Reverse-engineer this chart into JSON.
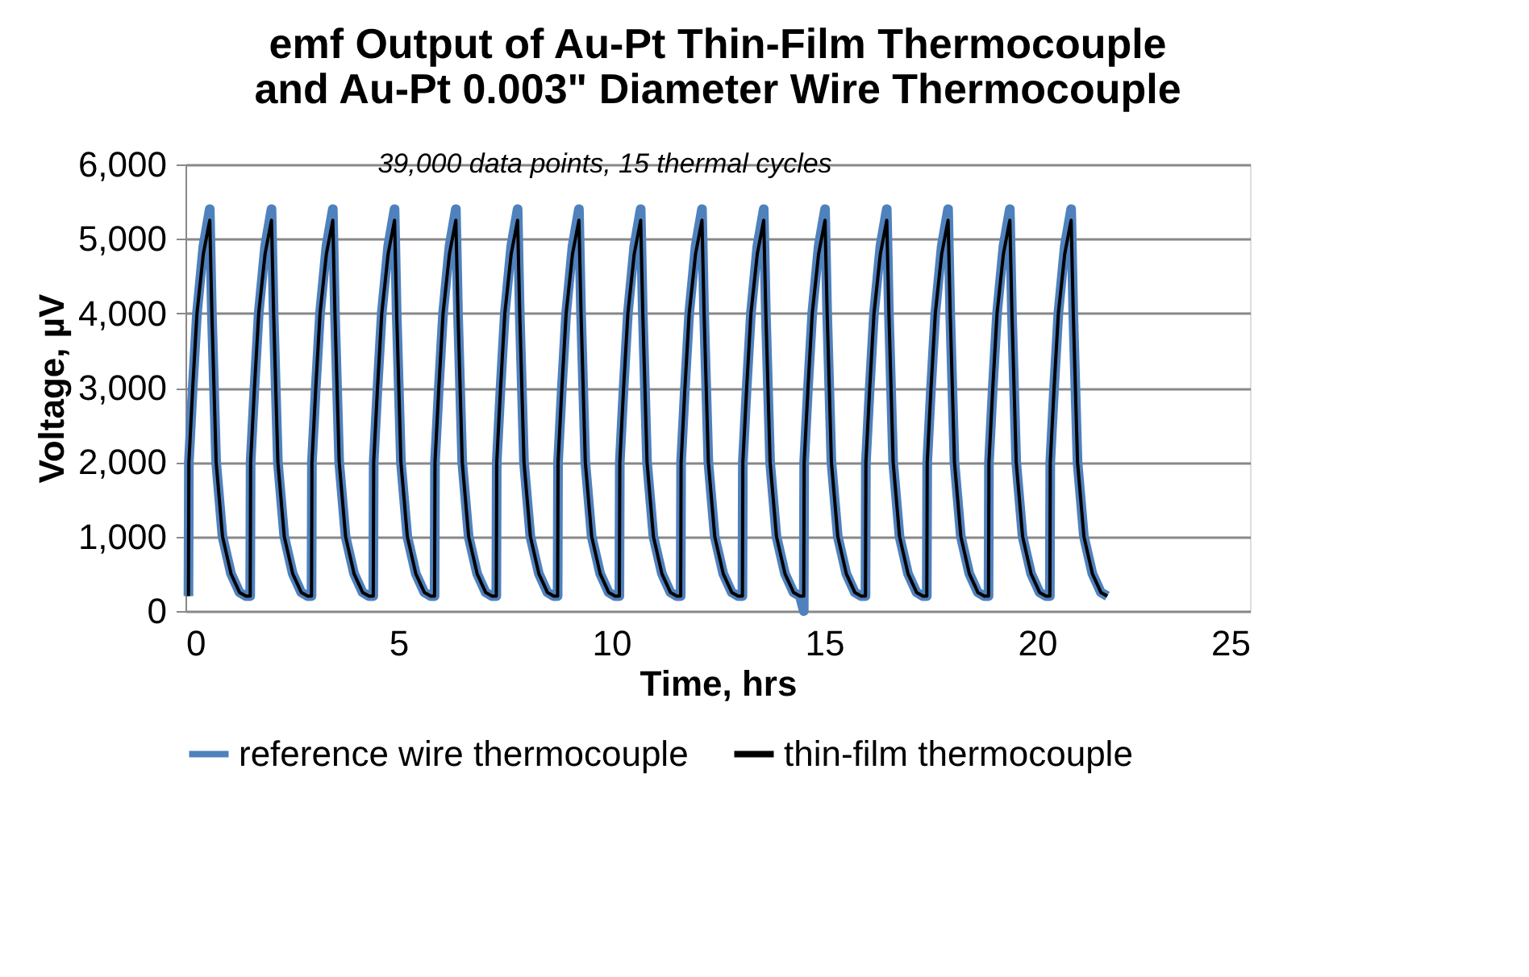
{
  "chart_data": {
    "type": "line",
    "title": [
      "emf Output of Au-Pt Thin-Film Thermocouple",
      "and Au-Pt 0.003\" Diameter Wire Thermocouple"
    ],
    "xlabel": "Time, hrs",
    "ylabel": "Voltage, µV",
    "annotations": [
      "39,000 data points,  15 thermal  cycles"
    ],
    "x": [
      0.07,
      0.08,
      0.17,
      0.27,
      0.42,
      0.57,
      0.62,
      0.72,
      0.87,
      1.07,
      1.27,
      1.42,
      1.52,
      1.53,
      1.62,
      1.72,
      1.87,
      2.02,
      2.07,
      2.17,
      2.32,
      2.52,
      2.72,
      2.87,
      2.96,
      2.97,
      3.06,
      3.16,
      3.31,
      3.46,
      3.51,
      3.61,
      3.76,
      3.96,
      4.16,
      4.31,
      4.41,
      4.42,
      4.51,
      4.61,
      4.76,
      4.91,
      4.96,
      5.06,
      5.21,
      5.41,
      5.61,
      5.76,
      5.85,
      5.86,
      5.95,
      6.05,
      6.2,
      6.35,
      6.4,
      6.5,
      6.65,
      6.85,
      7.05,
      7.2,
      7.3,
      7.31,
      7.4,
      7.5,
      7.65,
      7.8,
      7.85,
      7.95,
      8.1,
      8.3,
      8.5,
      8.65,
      8.74,
      8.75,
      8.84,
      8.94,
      9.09,
      9.24,
      9.29,
      9.39,
      9.54,
      9.74,
      9.94,
      10.09,
      10.19,
      10.2,
      10.29,
      10.39,
      10.54,
      10.69,
      10.74,
      10.84,
      10.99,
      11.19,
      11.39,
      11.54,
      11.63,
      11.64,
      11.73,
      11.83,
      11.98,
      12.13,
      12.18,
      12.28,
      12.43,
      12.63,
      12.83,
      12.98,
      13.08,
      13.09,
      13.18,
      13.28,
      13.43,
      13.58,
      13.63,
      13.73,
      13.88,
      14.08,
      14.28,
      14.43,
      14.52,
      14.53,
      14.62,
      14.72,
      14.87,
      15.02,
      15.07,
      15.17,
      15.32,
      15.52,
      15.72,
      15.87,
      15.97,
      15.98,
      16.07,
      16.17,
      16.32,
      16.47,
      16.52,
      16.62,
      16.77,
      16.97,
      17.17,
      17.32,
      17.41,
      17.42,
      17.51,
      17.61,
      17.76,
      17.91,
      17.96,
      18.06,
      18.21,
      18.41,
      18.61,
      18.76,
      18.86,
      18.87,
      18.96,
      19.06,
      19.21,
      19.36,
      19.41,
      19.51,
      19.66,
      19.86,
      20.06,
      20.21,
      20.3,
      20.31,
      20.4,
      20.5,
      20.65,
      20.8,
      20.85,
      20.95,
      21.1,
      21.3,
      21.5,
      21.65
    ],
    "series": [
      {
        "name": "reference wire thermocouple",
        "color": "#4f81bd",
        "values": [
          200,
          2000,
          3000,
          4000,
          4900,
          5400,
          4000,
          2000,
          1000,
          500,
          250,
          200,
          200,
          2000,
          3000,
          4000,
          4900,
          5400,
          4000,
          2000,
          1000,
          500,
          250,
          200,
          200,
          2000,
          3000,
          4000,
          4900,
          5400,
          4000,
          2000,
          1000,
          500,
          250,
          200,
          200,
          2000,
          3000,
          4000,
          4900,
          5400,
          4000,
          2000,
          1000,
          500,
          250,
          200,
          200,
          2000,
          3000,
          4000,
          4900,
          5400,
          4000,
          2000,
          1000,
          500,
          250,
          200,
          200,
          2000,
          3000,
          4000,
          4900,
          5400,
          4000,
          2000,
          1000,
          500,
          250,
          200,
          200,
          2000,
          3000,
          4000,
          4900,
          5400,
          4000,
          2000,
          1000,
          500,
          250,
          200,
          200,
          2000,
          3000,
          4000,
          4900,
          5400,
          4000,
          2000,
          1000,
          500,
          250,
          200,
          200,
          2000,
          3000,
          4000,
          4900,
          5400,
          4000,
          2000,
          1000,
          500,
          250,
          200,
          200,
          2000,
          3000,
          4000,
          4900,
          5400,
          4000,
          2000,
          1000,
          500,
          250,
          200,
          0,
          2000,
          3000,
          4000,
          4900,
          5400,
          4000,
          2000,
          1000,
          500,
          250,
          200,
          200,
          2000,
          3000,
          4000,
          4900,
          5400,
          4000,
          2000,
          1000,
          500,
          250,
          200,
          200,
          2000,
          3000,
          4000,
          4900,
          5400,
          4000,
          2000,
          1000,
          500,
          250,
          200,
          200,
          2000,
          3000,
          4000,
          4900,
          5400,
          4000,
          2000,
          1000,
          500,
          250,
          200,
          200,
          2000,
          3000,
          4000,
          4900,
          5400,
          4000,
          2000,
          1000,
          500,
          250,
          200
        ]
      },
      {
        "name": "thin-film thermocouple",
        "color": "#000000",
        "values": [
          200,
          2000,
          3000,
          4000,
          4800,
          5250,
          4000,
          2000,
          1000,
          500,
          250,
          200,
          200,
          2000,
          3000,
          4000,
          4800,
          5250,
          4000,
          2000,
          1000,
          500,
          250,
          200,
          200,
          2000,
          3000,
          4000,
          4800,
          5250,
          4000,
          2000,
          1000,
          500,
          250,
          200,
          200,
          2000,
          3000,
          4000,
          4800,
          5250,
          4000,
          2000,
          1000,
          500,
          250,
          200,
          200,
          2000,
          3000,
          4000,
          4800,
          5250,
          4000,
          2000,
          1000,
          500,
          250,
          200,
          200,
          2000,
          3000,
          4000,
          4800,
          5250,
          4000,
          2000,
          1000,
          500,
          250,
          200,
          200,
          2000,
          3000,
          4000,
          4800,
          5250,
          4000,
          2000,
          1000,
          500,
          250,
          200,
          200,
          2000,
          3000,
          4000,
          4800,
          5250,
          4000,
          2000,
          1000,
          500,
          250,
          200,
          200,
          2000,
          3000,
          4000,
          4800,
          5250,
          4000,
          2000,
          1000,
          500,
          250,
          200,
          200,
          2000,
          3000,
          4000,
          4800,
          5250,
          4000,
          2000,
          1000,
          500,
          250,
          200,
          200,
          2000,
          3000,
          4000,
          4800,
          5250,
          4000,
          2000,
          1000,
          500,
          250,
          200,
          200,
          2000,
          3000,
          4000,
          4800,
          5250,
          4000,
          2000,
          1000,
          500,
          250,
          200,
          200,
          2000,
          3000,
          4000,
          4800,
          5250,
          4000,
          2000,
          1000,
          500,
          250,
          200,
          200,
          2000,
          3000,
          4000,
          4800,
          5250,
          4000,
          2000,
          1000,
          500,
          250,
          200,
          200,
          2000,
          3000,
          4000,
          4800,
          5250,
          4000,
          2000,
          1000,
          500,
          250,
          200
        ]
      }
    ],
    "xlim": [
      0,
      25
    ],
    "xticks": [
      0,
      5,
      10,
      15,
      20,
      25
    ],
    "ylim": [
      0,
      6000
    ],
    "yticks": [
      0,
      {
        "value": 1000,
        "label": "1,000"
      },
      {
        "value": 2000,
        "label": "2,000"
      },
      {
        "value": 3000,
        "label": "3,000"
      },
      {
        "value": 4000,
        "label": "4,000"
      },
      {
        "value": 5000,
        "label": "5,000"
      },
      {
        "value": 6000,
        "label": "6,000"
      }
    ],
    "grid": "y",
    "legend": "bottom",
    "marker": "none",
    "line_style": "solid"
  }
}
